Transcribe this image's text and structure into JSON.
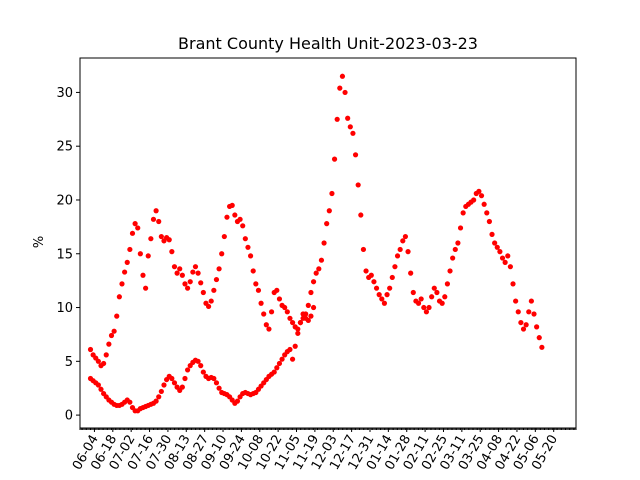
{
  "chart_data": {
    "type": "scatter",
    "title": "Brant County Health Unit-2023-03-23",
    "xlabel": "",
    "ylabel": "%",
    "xlim": [
      "2022-05-24",
      "2023-06-06"
    ],
    "ylim": [
      -1.2,
      33.2
    ],
    "y_ticks": [
      0,
      5,
      10,
      15,
      20,
      25,
      30
    ],
    "x_ticks": [
      "06-04",
      "06-18",
      "07-02",
      "07-16",
      "07-30",
      "08-13",
      "08-27",
      "09-10",
      "09-24",
      "10-08",
      "10-22",
      "11-05",
      "11-19",
      "12-03",
      "12-17",
      "12-31",
      "01-14",
      "01-28",
      "02-11",
      "02-25",
      "03-11",
      "03-25",
      "04-08",
      "04-22",
      "05-06",
      "05-20"
    ],
    "x_tick_dates": [
      "2022-06-04",
      "2022-06-18",
      "2022-07-02",
      "2022-07-16",
      "2022-07-30",
      "2022-08-13",
      "2022-08-27",
      "2022-09-10",
      "2022-09-24",
      "2022-10-08",
      "2022-10-22",
      "2022-11-05",
      "2022-11-19",
      "2022-12-03",
      "2022-12-17",
      "2022-12-31",
      "2023-01-14",
      "2023-01-28",
      "2023-02-11",
      "2023-02-25",
      "2023-03-11",
      "2023-03-25",
      "2023-04-08",
      "2023-04-22",
      "2023-05-06",
      "2023-05-20"
    ],
    "grid": false,
    "marker_color": "#ff0000",
    "series": [
      {
        "points": [
          [
            "2022-06-01",
            6.1
          ],
          [
            "2022-06-03",
            5.6
          ],
          [
            "2022-06-05",
            5.3
          ],
          [
            "2022-06-07",
            5.0
          ],
          [
            "2022-06-09",
            4.6
          ],
          [
            "2022-06-11",
            4.8
          ],
          [
            "2022-06-13",
            5.6
          ],
          [
            "2022-06-15",
            6.6
          ],
          [
            "2022-06-17",
            7.4
          ],
          [
            "2022-06-19",
            7.8
          ],
          [
            "2022-06-21",
            9.2
          ],
          [
            "2022-06-23",
            11.0
          ],
          [
            "2022-06-25",
            12.2
          ],
          [
            "2022-06-27",
            13.3
          ],
          [
            "2022-06-29",
            14.2
          ],
          [
            "2022-07-01",
            15.4
          ],
          [
            "2022-07-03",
            16.9
          ],
          [
            "2022-07-05",
            17.8
          ],
          [
            "2022-07-07",
            17.4
          ],
          [
            "2022-07-09",
            15.0
          ],
          [
            "2022-07-11",
            13.0
          ],
          [
            "2022-07-13",
            11.8
          ],
          [
            "2022-07-15",
            14.8
          ],
          [
            "2022-07-17",
            16.4
          ],
          [
            "2022-07-19",
            18.2
          ],
          [
            "2022-07-21",
            19.0
          ],
          [
            "2022-07-23",
            18.0
          ],
          [
            "2022-07-25",
            16.6
          ],
          [
            "2022-07-27",
            16.2
          ],
          [
            "2022-07-29",
            16.5
          ],
          [
            "2022-07-31",
            16.3
          ],
          [
            "2022-08-02",
            15.2
          ],
          [
            "2022-08-04",
            13.8
          ],
          [
            "2022-08-06",
            13.2
          ],
          [
            "2022-08-08",
            13.6
          ],
          [
            "2022-08-10",
            13.0
          ],
          [
            "2022-08-12",
            12.2
          ],
          [
            "2022-08-14",
            11.8
          ],
          [
            "2022-08-16",
            12.4
          ],
          [
            "2022-08-18",
            13.3
          ],
          [
            "2022-08-20",
            13.8
          ],
          [
            "2022-08-22",
            13.2
          ],
          [
            "2022-08-24",
            12.3
          ],
          [
            "2022-08-26",
            11.4
          ],
          [
            "2022-08-28",
            10.4
          ],
          [
            "2022-08-30",
            10.1
          ],
          [
            "2022-09-01",
            10.6
          ],
          [
            "2022-09-03",
            11.6
          ],
          [
            "2022-09-05",
            12.6
          ],
          [
            "2022-09-07",
            13.6
          ],
          [
            "2022-09-09",
            15.0
          ],
          [
            "2022-09-11",
            16.6
          ],
          [
            "2022-09-13",
            18.4
          ],
          [
            "2022-09-15",
            19.4
          ],
          [
            "2022-09-17",
            19.5
          ],
          [
            "2022-09-19",
            18.6
          ],
          [
            "2022-09-21",
            18.0
          ],
          [
            "2022-09-23",
            18.2
          ],
          [
            "2022-09-25",
            17.6
          ],
          [
            "2022-09-27",
            16.4
          ],
          [
            "2022-09-29",
            15.6
          ],
          [
            "2022-10-01",
            14.8
          ],
          [
            "2022-10-03",
            13.4
          ],
          [
            "2022-10-05",
            12.2
          ],
          [
            "2022-10-07",
            11.6
          ],
          [
            "2022-10-09",
            10.4
          ],
          [
            "2022-10-11",
            9.4
          ],
          [
            "2022-10-13",
            8.4
          ],
          [
            "2022-10-15",
            8.0
          ],
          [
            "2022-10-17",
            9.6
          ],
          [
            "2022-10-19",
            11.4
          ],
          [
            "2022-10-21",
            11.6
          ],
          [
            "2022-10-23",
            10.8
          ],
          [
            "2022-10-25",
            10.2
          ],
          [
            "2022-10-27",
            10.0
          ],
          [
            "2022-10-29",
            9.6
          ],
          [
            "2022-10-31",
            9.0
          ],
          [
            "2022-11-02",
            8.6
          ],
          [
            "2022-11-04",
            8.2
          ],
          [
            "2022-11-06",
            8.0
          ],
          [
            "2022-11-08",
            8.6
          ],
          [
            "2022-11-10",
            9.0
          ],
          [
            "2022-11-12",
            9.4
          ],
          [
            "2022-11-14",
            10.2
          ],
          [
            "2022-11-16",
            11.4
          ],
          [
            "2022-11-18",
            12.4
          ],
          [
            "2022-11-20",
            13.2
          ],
          [
            "2022-11-22",
            13.6
          ],
          [
            "2022-11-24",
            14.4
          ],
          [
            "2022-11-26",
            16.0
          ],
          [
            "2022-11-28",
            17.8
          ],
          [
            "2022-11-30",
            19.0
          ],
          [
            "2022-12-02",
            20.6
          ],
          [
            "2022-12-04",
            23.8
          ],
          [
            "2022-12-06",
            27.5
          ],
          [
            "2022-12-08",
            30.4
          ],
          [
            "2022-12-10",
            31.5
          ],
          [
            "2022-12-12",
            30.0
          ],
          [
            "2022-12-14",
            27.6
          ],
          [
            "2022-12-16",
            26.8
          ],
          [
            "2022-12-18",
            26.2
          ],
          [
            "2022-12-20",
            24.2
          ],
          [
            "2022-12-22",
            21.4
          ],
          [
            "2022-12-24",
            18.6
          ],
          [
            "2022-12-26",
            15.4
          ],
          [
            "2022-12-28",
            13.4
          ],
          [
            "2022-12-30",
            12.8
          ],
          [
            "2023-01-01",
            13.0
          ],
          [
            "2023-01-03",
            12.4
          ],
          [
            "2023-01-05",
            11.8
          ],
          [
            "2023-01-07",
            11.2
          ],
          [
            "2023-01-09",
            10.8
          ],
          [
            "2023-01-11",
            10.4
          ],
          [
            "2023-01-13",
            11.2
          ],
          [
            "2023-01-15",
            11.8
          ],
          [
            "2023-01-17",
            12.8
          ],
          [
            "2023-01-19",
            13.8
          ],
          [
            "2023-01-21",
            14.8
          ],
          [
            "2023-01-23",
            15.4
          ],
          [
            "2023-01-25",
            16.2
          ],
          [
            "2023-01-27",
            16.6
          ],
          [
            "2023-01-29",
            15.2
          ],
          [
            "2023-01-31",
            13.2
          ],
          [
            "2023-02-02",
            11.4
          ],
          [
            "2023-02-04",
            10.6
          ],
          [
            "2023-02-06",
            10.4
          ],
          [
            "2023-02-08",
            10.8
          ],
          [
            "2023-02-10",
            10.0
          ],
          [
            "2023-02-12",
            9.6
          ],
          [
            "2023-02-14",
            10.0
          ],
          [
            "2023-02-16",
            11.0
          ],
          [
            "2023-02-18",
            11.8
          ],
          [
            "2023-02-20",
            11.4
          ],
          [
            "2023-02-22",
            10.6
          ],
          [
            "2023-02-24",
            10.4
          ],
          [
            "2023-02-26",
            11.0
          ],
          [
            "2023-02-28",
            12.2
          ],
          [
            "2023-03-02",
            13.4
          ],
          [
            "2023-03-04",
            14.6
          ],
          [
            "2023-03-06",
            15.4
          ],
          [
            "2023-03-08",
            16.0
          ],
          [
            "2023-03-10",
            17.4
          ],
          [
            "2023-03-12",
            18.8
          ],
          [
            "2023-03-14",
            19.4
          ],
          [
            "2023-03-16",
            19.6
          ],
          [
            "2023-03-18",
            19.8
          ],
          [
            "2023-03-20",
            20.0
          ],
          [
            "2023-03-22",
            20.6
          ],
          [
            "2023-03-24",
            20.8
          ],
          [
            "2023-03-26",
            20.4
          ],
          [
            "2023-03-28",
            19.6
          ],
          [
            "2023-03-30",
            18.8
          ],
          [
            "2023-04-01",
            18.0
          ],
          [
            "2023-04-03",
            16.8
          ],
          [
            "2023-04-05",
            16.0
          ],
          [
            "2023-04-07",
            15.6
          ],
          [
            "2023-04-09",
            15.2
          ],
          [
            "2023-04-11",
            14.6
          ],
          [
            "2023-04-13",
            14.2
          ],
          [
            "2023-04-15",
            14.8
          ],
          [
            "2023-04-17",
            13.8
          ],
          [
            "2023-04-19",
            12.2
          ],
          [
            "2023-04-21",
            10.6
          ],
          [
            "2023-04-23",
            9.6
          ],
          [
            "2023-04-25",
            8.6
          ],
          [
            "2023-04-27",
            8.0
          ],
          [
            "2023-04-29",
            8.4
          ],
          [
            "2023-05-01",
            9.6
          ],
          [
            "2023-05-03",
            10.6
          ],
          [
            "2023-05-05",
            9.4
          ],
          [
            "2023-05-07",
            8.2
          ],
          [
            "2023-05-09",
            7.2
          ],
          [
            "2023-05-11",
            6.3
          ]
        ]
      },
      {
        "points": [
          [
            "2022-06-01",
            3.4
          ],
          [
            "2022-06-03",
            3.2
          ],
          [
            "2022-06-05",
            3.0
          ],
          [
            "2022-06-07",
            2.8
          ],
          [
            "2022-06-09",
            2.4
          ],
          [
            "2022-06-11",
            2.0
          ],
          [
            "2022-06-13",
            1.7
          ],
          [
            "2022-06-15",
            1.4
          ],
          [
            "2022-06-17",
            1.2
          ],
          [
            "2022-06-19",
            1.0
          ],
          [
            "2022-06-21",
            0.9
          ],
          [
            "2022-06-23",
            0.9
          ],
          [
            "2022-06-25",
            1.0
          ],
          [
            "2022-06-27",
            1.2
          ],
          [
            "2022-06-29",
            1.4
          ],
          [
            "2022-07-01",
            1.2
          ],
          [
            "2022-07-03",
            0.7
          ],
          [
            "2022-07-05",
            0.4
          ],
          [
            "2022-07-07",
            0.4
          ],
          [
            "2022-07-09",
            0.6
          ],
          [
            "2022-07-11",
            0.7
          ],
          [
            "2022-07-13",
            0.8
          ],
          [
            "2022-07-15",
            0.9
          ],
          [
            "2022-07-17",
            1.0
          ],
          [
            "2022-07-19",
            1.1
          ],
          [
            "2022-07-21",
            1.3
          ],
          [
            "2022-07-23",
            1.7
          ],
          [
            "2022-07-25",
            2.2
          ],
          [
            "2022-07-27",
            2.8
          ],
          [
            "2022-07-29",
            3.3
          ],
          [
            "2022-07-31",
            3.6
          ],
          [
            "2022-08-02",
            3.4
          ],
          [
            "2022-08-04",
            3.0
          ],
          [
            "2022-08-06",
            2.6
          ],
          [
            "2022-08-08",
            2.3
          ],
          [
            "2022-08-10",
            2.6
          ],
          [
            "2022-08-12",
            3.4
          ],
          [
            "2022-08-14",
            4.2
          ],
          [
            "2022-08-16",
            4.6
          ],
          [
            "2022-08-18",
            4.9
          ],
          [
            "2022-08-20",
            5.1
          ],
          [
            "2022-08-22",
            5.0
          ],
          [
            "2022-08-24",
            4.6
          ],
          [
            "2022-08-26",
            4.0
          ],
          [
            "2022-08-28",
            3.6
          ],
          [
            "2022-08-30",
            3.4
          ],
          [
            "2022-09-01",
            3.5
          ],
          [
            "2022-09-03",
            3.4
          ],
          [
            "2022-09-05",
            3.0
          ],
          [
            "2022-09-07",
            2.5
          ],
          [
            "2022-09-09",
            2.1
          ],
          [
            "2022-09-11",
            2.0
          ],
          [
            "2022-09-13",
            1.9
          ],
          [
            "2022-09-15",
            1.7
          ],
          [
            "2022-09-17",
            1.4
          ],
          [
            "2022-09-19",
            1.1
          ],
          [
            "2022-09-21",
            1.3
          ],
          [
            "2022-09-23",
            1.7
          ],
          [
            "2022-09-25",
            2.0
          ],
          [
            "2022-09-27",
            2.1
          ],
          [
            "2022-09-29",
            2.0
          ],
          [
            "2022-10-01",
            1.9
          ],
          [
            "2022-10-03",
            2.0
          ],
          [
            "2022-10-05",
            2.1
          ],
          [
            "2022-10-07",
            2.4
          ],
          [
            "2022-10-09",
            2.7
          ],
          [
            "2022-10-11",
            3.0
          ],
          [
            "2022-10-13",
            3.3
          ],
          [
            "2022-10-15",
            3.6
          ],
          [
            "2022-10-17",
            3.8
          ],
          [
            "2022-10-19",
            4.0
          ],
          [
            "2022-10-21",
            4.4
          ],
          [
            "2022-10-23",
            4.8
          ],
          [
            "2022-10-25",
            5.2
          ],
          [
            "2022-10-27",
            5.6
          ],
          [
            "2022-10-29",
            5.9
          ],
          [
            "2022-10-31",
            6.1
          ],
          [
            "2022-11-02",
            5.2
          ],
          [
            "2022-11-04",
            6.4
          ],
          [
            "2022-11-06",
            7.6
          ],
          [
            "2022-11-08",
            8.6
          ],
          [
            "2022-11-10",
            9.4
          ],
          [
            "2022-11-12",
            9.0
          ],
          [
            "2022-11-14",
            8.8
          ],
          [
            "2022-11-16",
            9.2
          ],
          [
            "2022-11-18",
            10.0
          ]
        ]
      }
    ]
  }
}
